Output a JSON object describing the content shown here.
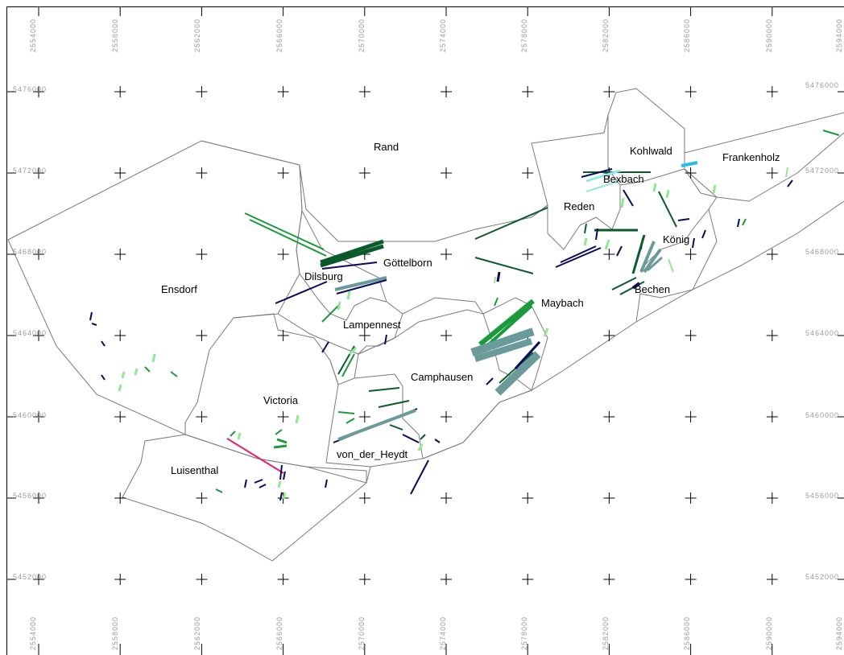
{
  "map": {
    "grid": {
      "x_labels": [
        "2554000",
        "2558000",
        "2562000",
        "2566000",
        "2570000",
        "2574000",
        "2578000",
        "2582000",
        "2586000",
        "2590000",
        "2594000"
      ],
      "y_labels": [
        "5476000",
        "5472000",
        "5468000",
        "5464000",
        "5460000",
        "5456000",
        "5452000"
      ]
    },
    "districts": [
      {
        "id": "rand",
        "label": "Rand"
      },
      {
        "id": "kohlwald",
        "label": "Kohlwald"
      },
      {
        "id": "frankenholz",
        "label": "Frankenholz"
      },
      {
        "id": "bexbach",
        "label": "Bexbach"
      },
      {
        "id": "reden",
        "label": "Reden"
      },
      {
        "id": "koenig",
        "label": "König"
      },
      {
        "id": "goettelborn",
        "label": "Göttelborn"
      },
      {
        "id": "dilsburg",
        "label": "Dilsburg"
      },
      {
        "id": "ensdorf",
        "label": "Ensdorf"
      },
      {
        "id": "bechen",
        "label": "Bechen"
      },
      {
        "id": "maybach",
        "label": "Maybach"
      },
      {
        "id": "lampennest",
        "label": "Lampennest"
      },
      {
        "id": "camphausen",
        "label": "Camphausen"
      },
      {
        "id": "victoria",
        "label": "Victoria"
      },
      {
        "id": "von_der_heydt",
        "label": "von_der_Heydt"
      },
      {
        "id": "luisenthal",
        "label": "Luisenthal"
      }
    ],
    "colors": {
      "dark_navy": "#0a0a5a",
      "dark_green": "#0a5a2a",
      "green": "#1a9a3a",
      "light_green": "#90e890",
      "teal_grey": "#6a9a9a",
      "cyan": "#20c0e8",
      "light_cyan": "#90e8e8",
      "magenta": "#e8206a",
      "boundary": "#7a7a7a"
    }
  }
}
